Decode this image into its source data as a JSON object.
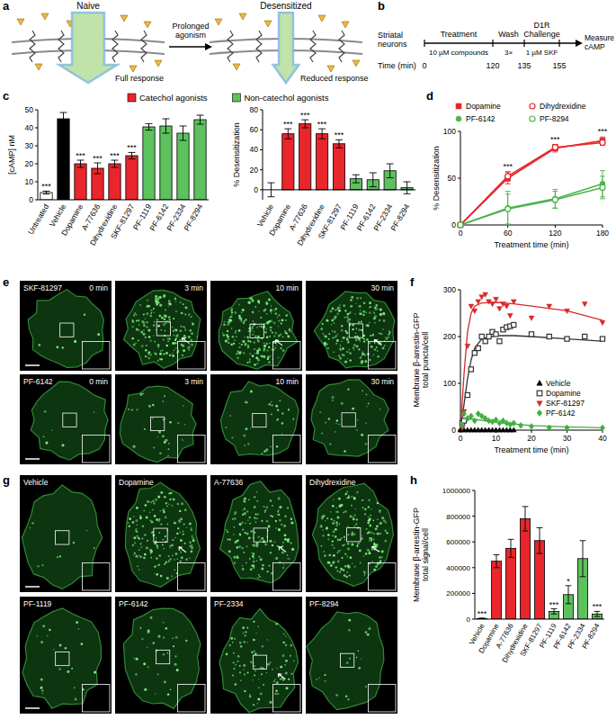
{
  "panel_labels": [
    "a",
    "b",
    "c",
    "d",
    "e",
    "f",
    "g",
    "h"
  ],
  "diagram_a": {
    "left_title": "Naive",
    "right_title": "Desensitized",
    "arrow_label": "Prolonged agonism",
    "left_response": "Full response",
    "right_response": "Reduced response"
  },
  "timeline_b": {
    "start": "Striatal neurons",
    "axis_label": "Time (min)",
    "end": "Measure cAMP",
    "times": [
      0,
      120,
      135,
      155
    ],
    "segments": [
      {
        "label": "Treatment",
        "detail": "10 µM compounds"
      },
      {
        "label": "Wash",
        "detail": "3×"
      },
      {
        "label": "D1R Challenge",
        "detail": "1 µM SKF"
      }
    ]
  },
  "images_e": {
    "rows": [
      {
        "label": "SKF-81297",
        "times": [
          "0 min",
          "3 min",
          "10 min",
          "30 min"
        ]
      },
      {
        "label": "PF-6142",
        "times": [
          "0 min",
          "3 min",
          "10 min",
          "30 min"
        ]
      }
    ]
  },
  "images_g": {
    "labels": [
      "Vehicle",
      "Dopamine",
      "A-77636",
      "Dihydrexidine",
      "PF-1119",
      "PF-6142",
      "PF-2334",
      "PF-8294"
    ]
  },
  "chart_data": [
    {
      "type": "bar",
      "ylabel": "[cAMP] nM",
      "categories": [
        "Untreated",
        "Vehicle",
        "Dopamine",
        "A-77636",
        "Dihydrexidine",
        "SKF-81297",
        "PF-1119",
        "PF-6142",
        "PF-2334",
        "PF-8294"
      ],
      "values": [
        4,
        45,
        20,
        17.5,
        20,
        24.5,
        40.5,
        41,
        37,
        44.5
      ],
      "errors": [
        0.8,
        3.5,
        2,
        3,
        2,
        1.8,
        1.8,
        4,
        4,
        2.5
      ],
      "significance": [
        "***",
        null,
        "***",
        "***",
        "***",
        "***",
        null,
        null,
        null,
        null
      ],
      "colors": [
        "#ffffff",
        "#000000",
        "#e8262b",
        "#e8262b",
        "#e8262b",
        "#e8262b",
        "#5dc15d",
        "#5dc15d",
        "#5dc15d",
        "#5dc15d"
      ],
      "ylim": [
        0,
        50
      ],
      "yticks": [
        0,
        10,
        20,
        30,
        40,
        50
      ],
      "grid": false,
      "legend": "top",
      "legend_entries": [
        {
          "name": "Catechol agonists",
          "color": "#e8262b"
        },
        {
          "name": "Non-catechol agonists",
          "color": "#5dc15d"
        }
      ]
    },
    {
      "type": "bar",
      "ylabel": "% Desensitization",
      "categories": [
        "Vehicle",
        "Dopamine",
        "A-77636",
        "Dihydrexidine",
        "SKF-81297",
        "PF-1119",
        "PF-6142",
        "PF-2334",
        "PF-8294"
      ],
      "values": [
        0,
        56,
        66,
        56,
        46,
        11,
        10,
        19,
        2
      ],
      "errors": [
        7,
        5,
        4,
        5,
        4,
        4,
        7,
        7,
        6
      ],
      "significance": [
        null,
        "***",
        "***",
        "***",
        "***",
        null,
        null,
        null,
        null
      ],
      "colors": [
        "#ffffff",
        "#e8262b",
        "#e8262b",
        "#e8262b",
        "#e8262b",
        "#5dc15d",
        "#5dc15d",
        "#5dc15d",
        "#5dc15d"
      ],
      "ylim": [
        -10,
        80
      ],
      "yticks": [
        0,
        20,
        40,
        60,
        80
      ],
      "grid": false
    },
    {
      "type": "line",
      "xlabel": "Treatment time (min)",
      "ylabel": "% Desensitization",
      "x": [
        0,
        60,
        120,
        180
      ],
      "xlim": [
        0,
        180
      ],
      "xticks": [
        0,
        60,
        120,
        180
      ],
      "ylim": [
        0,
        100
      ],
      "yticks": [
        0,
        50,
        100
      ],
      "significance": [
        null,
        "***",
        "***",
        "***"
      ],
      "grid": false,
      "legend": "top",
      "series": [
        {
          "name": "Dopamine",
          "color": "#e8262b",
          "marker": "square",
          "values": [
            0,
            50,
            82,
            90
          ],
          "errors": [
            0,
            6,
            4,
            4
          ]
        },
        {
          "name": "Dihydrexidine",
          "color": "#e8262b",
          "marker": "circle-open",
          "values": [
            0,
            52,
            83,
            88
          ],
          "errors": [
            0,
            5,
            3,
            3
          ]
        },
        {
          "name": "PF-6142",
          "color": "#4db34d",
          "marker": "circle",
          "values": [
            0,
            18,
            28,
            44
          ],
          "errors": [
            0,
            18,
            10,
            14
          ]
        },
        {
          "name": "PF-8294",
          "color": "#4db34d",
          "marker": "circle-open",
          "values": [
            0,
            17,
            27,
            40
          ],
          "errors": [
            0,
            16,
            9,
            12
          ]
        }
      ]
    },
    {
      "type": "scatter",
      "xlabel": "Treatment time (min)",
      "ylabel": "Membrane β-arrestin-GFP total puncta/cell",
      "xlim": [
        0,
        40
      ],
      "xticks": [
        0,
        10,
        20,
        30,
        40
      ],
      "ylim": [
        0,
        300
      ],
      "yticks": [
        0,
        100,
        200,
        300
      ],
      "grid": false,
      "legend": "lower right",
      "fit_x": [
        0,
        1,
        2,
        3,
        4,
        6,
        10,
        15,
        20,
        30,
        40
      ],
      "series": [
        {
          "name": "Vehicle",
          "color": "#000000",
          "marker": "triangle-up",
          "x": [
            0,
            1,
            2,
            3,
            4,
            5,
            6,
            7,
            8,
            9,
            10,
            11,
            12,
            13,
            14,
            15
          ],
          "values": [
            0,
            0,
            0,
            0,
            0,
            0,
            0,
            0,
            0,
            0,
            0,
            0,
            0,
            0,
            0,
            0
          ]
        },
        {
          "name": "Dopamine",
          "color": "#333333",
          "marker": "square-open",
          "x": [
            0.5,
            1,
            2,
            3,
            4,
            5,
            6,
            7,
            8,
            9,
            10,
            11,
            12,
            13,
            14,
            15,
            20,
            25,
            30,
            35,
            40
          ],
          "values": [
            15,
            20,
            75,
            130,
            165,
            175,
            200,
            190,
            200,
            210,
            205,
            190,
            215,
            220,
            222,
            225,
            205,
            200,
            195,
            200,
            195
          ],
          "fit_values": [
            0,
            55,
            110,
            150,
            175,
            195,
            202,
            202,
            200,
            195,
            190
          ]
        },
        {
          "name": "SKF-81297",
          "color": "#d42a2a",
          "marker": "triangle-down",
          "x": [
            0.5,
            1,
            2,
            3,
            4,
            5,
            6,
            7,
            8,
            9,
            10,
            11,
            12,
            13,
            14,
            15,
            20,
            25,
            30,
            35,
            40
          ],
          "values": [
            5,
            40,
            180,
            265,
            255,
            275,
            285,
            290,
            275,
            270,
            280,
            260,
            270,
            265,
            245,
            275,
            240,
            265,
            255,
            270,
            230
          ],
          "fit_values": [
            0,
            120,
            210,
            250,
            265,
            272,
            273,
            270,
            265,
            255,
            235
          ]
        },
        {
          "name": "PF-6142",
          "color": "#3fae3f",
          "marker": "diamond",
          "x": [
            0.5,
            1,
            2,
            3,
            4,
            5,
            6,
            7,
            8,
            9,
            10,
            11,
            12,
            13,
            14,
            15,
            17,
            20,
            25,
            30,
            40
          ],
          "values": [
            10,
            35,
            25,
            30,
            20,
            35,
            30,
            25,
            20,
            18,
            22,
            15,
            20,
            15,
            12,
            15,
            10,
            8,
            5,
            5,
            5
          ],
          "fit_values": [
            0,
            15,
            22,
            24,
            23,
            21,
            17,
            13,
            10,
            7,
            5
          ]
        }
      ]
    },
    {
      "type": "bar",
      "ylabel": "Membrane β-arrestin-GFP total signal/cell",
      "categories": [
        "Vehicle",
        "Dopamine",
        "A-77636",
        "Dihydrexidine",
        "SKF-81297",
        "PF-1119",
        "PF-6142",
        "PF-2334",
        "PF-8294"
      ],
      "values": [
        5000,
        450000,
        550000,
        780000,
        610000,
        60000,
        190000,
        470000,
        40000
      ],
      "errors": [
        3000,
        50000,
        70000,
        95000,
        100000,
        20000,
        70000,
        140000,
        20000
      ],
      "significance": [
        "***",
        null,
        null,
        null,
        null,
        "***",
        "*",
        null,
        "***"
      ],
      "colors": [
        "#ffffff",
        "#e8262b",
        "#e8262b",
        "#e8262b",
        "#e8262b",
        "#5dc15d",
        "#5dc15d",
        "#5dc15d",
        "#5dc15d"
      ],
      "ylim": [
        0,
        1000000
      ],
      "yticks": [
        0,
        200000,
        400000,
        600000,
        800000,
        1000000
      ],
      "grid": false
    }
  ]
}
